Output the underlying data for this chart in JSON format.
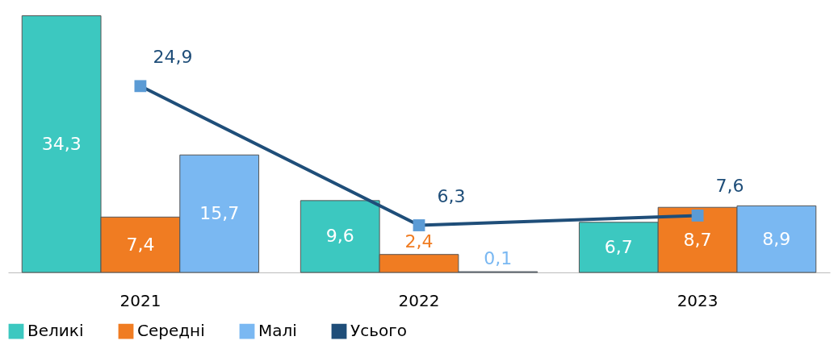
{
  "chart_data": {
    "type": "bar",
    "categories": [
      "2021",
      "2022",
      "2023"
    ],
    "series": [
      {
        "name": "Великі",
        "color": "#3cc8c0",
        "values": [
          34.3,
          9.6,
          6.7
        ],
        "value_labels": [
          "34,3",
          "9,6",
          "6,7"
        ]
      },
      {
        "name": "Середні",
        "color": "#f07c22",
        "values": [
          7.4,
          2.4,
          8.7
        ],
        "value_labels": [
          "7,4",
          "2,4",
          "8,7"
        ]
      },
      {
        "name": "Малі",
        "color": "#7ab8f2",
        "values": [
          15.7,
          0.1,
          8.9
        ],
        "value_labels": [
          "15,7",
          "0,1",
          "8,9"
        ]
      },
      {
        "name": "Усього",
        "type": "line",
        "color": "#1f4e79",
        "marker": "square",
        "line_style": "solid",
        "values": [
          24.9,
          6.3,
          7.6
        ],
        "value_labels": [
          "24,9",
          "6,3",
          "7,6"
        ]
      }
    ],
    "tick_labels": "x",
    "grid": false,
    "legend": "bottom"
  }
}
